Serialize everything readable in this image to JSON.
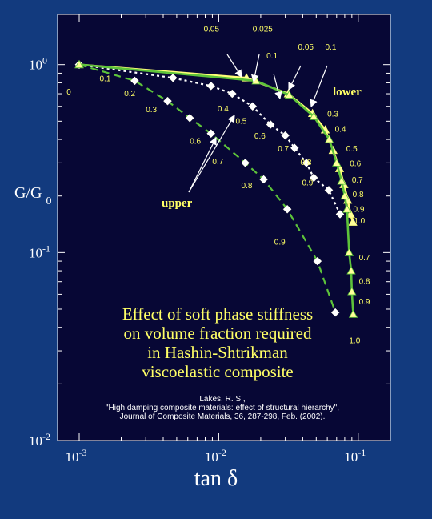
{
  "chart_data": {
    "type": "scatter",
    "x_scale": "log",
    "y_scale": "log",
    "xlim": [
      0.0007,
      0.17
    ],
    "ylim": [
      0.01,
      1.85
    ],
    "xlabel": "tan δ",
    "ylabel_main": "G/G",
    "ylabel_sub": "0",
    "x_ticks": [
      {
        "value": 0.001,
        "base": "10",
        "exp": "-3"
      },
      {
        "value": 0.01,
        "base": "10",
        "exp": "-2"
      },
      {
        "value": 0.1,
        "base": "10",
        "exp": "-1"
      }
    ],
    "y_ticks": [
      {
        "value": 1,
        "base": "10",
        "exp": "0"
      },
      {
        "value": 0.1,
        "base": "10",
        "exp": "-1"
      },
      {
        "value": 0.01,
        "base": "10",
        "exp": "-2"
      }
    ],
    "title_lines": [
      "Effect of soft phase stiffness",
      "on volume fraction required",
      "in Hashin-Shtrikman",
      "viscoelastic composite"
    ],
    "citation_lines": [
      "Lakes, R. S.,",
      "\"High damping composite materials: effect of structural hierarchy\",",
      "Journal of Composite Materials, 36, 287-298, Feb. (2002)."
    ],
    "annotations": {
      "upper": "upper",
      "lower": "lower",
      "start": "0"
    },
    "series": [
      {
        "group": "upper",
        "marker": "diamond",
        "style": "dashed",
        "color": "#5dc33a",
        "points": [
          {
            "x": 0.001,
            "y": 1.0
          },
          {
            "x": 0.0025,
            "y": 0.82
          },
          {
            "x": 0.0043,
            "y": 0.64
          },
          {
            "x": 0.0062,
            "y": 0.52
          },
          {
            "x": 0.0088,
            "y": 0.43
          },
          {
            "x": 0.0155,
            "y": 0.3
          },
          {
            "x": 0.021,
            "y": 0.245
          },
          {
            "x": 0.031,
            "y": 0.17
          },
          {
            "x": 0.051,
            "y": 0.09
          },
          {
            "x": 0.0685,
            "y": 0.048
          }
        ],
        "labels": [
          {
            "text": "0.1",
            "x": 0.0014,
            "y": 0.815
          },
          {
            "text": "0.2",
            "x": 0.0021,
            "y": 0.68
          },
          {
            "text": "0.3",
            "x": 0.003,
            "y": 0.56
          },
          {
            "text": "0.6",
            "x": 0.0062,
            "y": 0.38
          },
          {
            "text": "0.7",
            "x": 0.009,
            "y": 0.295
          },
          {
            "text": "0.8",
            "x": 0.0145,
            "y": 0.22
          },
          {
            "text": "0.9",
            "x": 0.025,
            "y": 0.11
          }
        ]
      },
      {
        "group": "upper",
        "marker": "diamond",
        "style": "dotted",
        "color": "#ffffff",
        "points": [
          {
            "x": 0.001,
            "y": 1.0
          },
          {
            "x": 0.0047,
            "y": 0.85
          },
          {
            "x": 0.0088,
            "y": 0.77
          },
          {
            "x": 0.0125,
            "y": 0.7
          },
          {
            "x": 0.0175,
            "y": 0.6
          },
          {
            "x": 0.0235,
            "y": 0.48
          },
          {
            "x": 0.03,
            "y": 0.42
          },
          {
            "x": 0.035,
            "y": 0.36
          },
          {
            "x": 0.0425,
            "y": 0.3
          },
          {
            "x": 0.048,
            "y": 0.25
          },
          {
            "x": 0.0615,
            "y": 0.215
          },
          {
            "x": 0.074,
            "y": 0.16
          }
        ],
        "labels": [
          {
            "text": "0.4",
            "x": 0.0098,
            "y": 0.565
          },
          {
            "text": "0.5",
            "x": 0.0132,
            "y": 0.485
          },
          {
            "text": "0.6",
            "x": 0.018,
            "y": 0.405
          },
          {
            "text": "0.7",
            "x": 0.0265,
            "y": 0.345
          },
          {
            "text": "0.8",
            "x": 0.0385,
            "y": 0.293
          },
          {
            "text": "0.9",
            "x": 0.0395,
            "y": 0.228
          }
        ]
      },
      {
        "group": "lower",
        "marker": "triangle",
        "style": "solid",
        "color": "#ffff78",
        "points": [
          {
            "x": 0.001,
            "y": 1.0
          },
          {
            "x": 0.0158,
            "y": 0.85
          },
          {
            "x": 0.0315,
            "y": 0.7
          },
          {
            "x": 0.047,
            "y": 0.55
          },
          {
            "x": 0.058,
            "y": 0.45
          },
          {
            "x": 0.066,
            "y": 0.35
          },
          {
            "x": 0.0735,
            "y": 0.28
          },
          {
            "x": 0.079,
            "y": 0.23
          },
          {
            "x": 0.084,
            "y": 0.19
          },
          {
            "x": 0.088,
            "y": 0.16
          },
          {
            "x": 0.0915,
            "y": 0.145
          }
        ],
        "labels": [
          {
            "text": "0.3",
            "x": 0.06,
            "y": 0.53
          },
          {
            "text": "0.4",
            "x": 0.068,
            "y": 0.44
          },
          {
            "text": "0.5",
            "x": 0.082,
            "y": 0.345
          },
          {
            "text": "0.6",
            "x": 0.087,
            "y": 0.288
          },
          {
            "text": "0.7",
            "x": 0.09,
            "y": 0.236
          },
          {
            "text": "0.8",
            "x": 0.091,
            "y": 0.197
          },
          {
            "text": "0.9",
            "x": 0.092,
            "y": 0.165
          },
          {
            "text": "1.0",
            "x": 0.093,
            "y": 0.143
          }
        ]
      },
      {
        "group": "lower",
        "marker": "triangle",
        "style": "solid",
        "color": "#5dc33a",
        "points": [
          {
            "x": 0.001,
            "y": 1.0
          },
          {
            "x": 0.0185,
            "y": 0.82
          },
          {
            "x": 0.032,
            "y": 0.69
          },
          {
            "x": 0.048,
            "y": 0.53
          },
          {
            "x": 0.062,
            "y": 0.4
          },
          {
            "x": 0.07,
            "y": 0.3
          },
          {
            "x": 0.076,
            "y": 0.24
          },
          {
            "x": 0.08,
            "y": 0.2
          },
          {
            "x": 0.083,
            "y": 0.17
          },
          {
            "x": 0.086,
            "y": 0.1
          },
          {
            "x": 0.089,
            "y": 0.08
          },
          {
            "x": 0.09,
            "y": 0.062
          },
          {
            "x": 0.092,
            "y": 0.047
          }
        ],
        "labels": [
          {
            "text": "0.7",
            "x": 0.101,
            "y": 0.091
          },
          {
            "text": "0.8",
            "x": 0.101,
            "y": 0.068
          },
          {
            "text": "0.9",
            "x": 0.101,
            "y": 0.053
          },
          {
            "text": "1.0",
            "x": 0.086,
            "y": 0.033
          }
        ]
      }
    ],
    "arrow_labels": [
      {
        "text": "0.05",
        "x": 0.0078,
        "y": 1.5
      },
      {
        "text": "0.025",
        "x": 0.0175,
        "y": 1.5
      },
      {
        "text": "0.1",
        "x": 0.022,
        "y": 1.08
      },
      {
        "text": "0.05",
        "x": 0.037,
        "y": 1.2
      },
      {
        "text": "0.1",
        "x": 0.058,
        "y": 1.2
      }
    ]
  }
}
